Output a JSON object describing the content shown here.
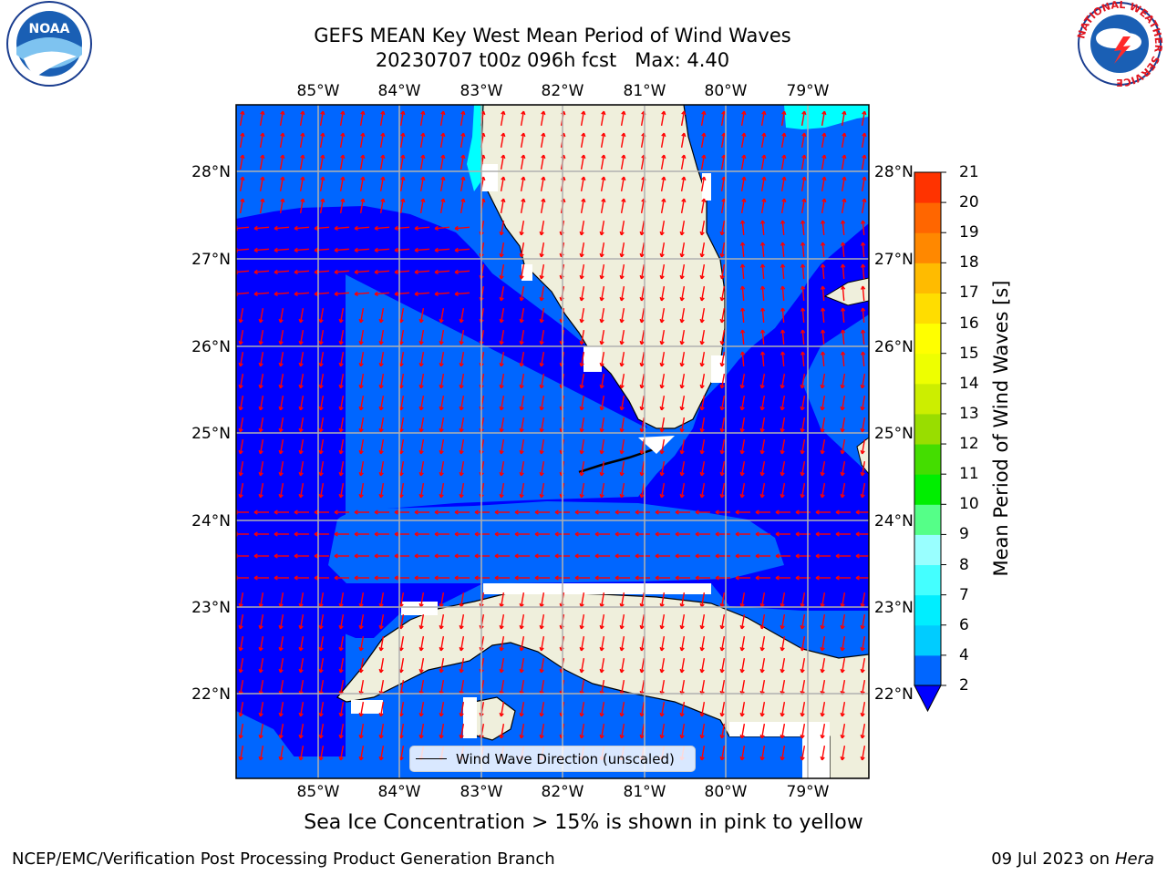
{
  "title": {
    "line1": "GEFS MEAN Key West Mean Period of Wind Waves",
    "line2": "20230707 t00z 096h fcst   Max: 4.40"
  },
  "logos": {
    "noaa_text": "NOAA",
    "nws_ring": "NATIONAL WEATHER SERVICE"
  },
  "map": {
    "longitude_labels": [
      "85°W",
      "84°W",
      "83°W",
      "82°W",
      "81°W",
      "80°W",
      "79°W"
    ],
    "latitude_labels": [
      "28°N",
      "27°N",
      "26°N",
      "25°N",
      "24°N",
      "23°N",
      "22°N"
    ],
    "legend": "Wind Wave Direction (unscaled)",
    "colors": {
      "ocean_low": "#0000ff",
      "ocean_mid": "#0066ff",
      "ocean_light": "#00aaff",
      "ocean_cyan": "#00ffff",
      "land": "#efefdc",
      "arrow": "#ff0000",
      "grid": "#b0b0b0"
    }
  },
  "colorbar": {
    "label": "Mean Period of Wind Waves [s]",
    "ticks": [
      "2",
      "4",
      "6",
      "7",
      "8",
      "9",
      "10",
      "11",
      "12",
      "13",
      "14",
      "15",
      "16",
      "17",
      "18",
      "19",
      "20",
      "21"
    ],
    "colors": [
      "#0066ff",
      "#00ccff",
      "#00eeff",
      "#44ffff",
      "#99ffff",
      "#55ff88",
      "#00ee00",
      "#44dd00",
      "#99dd00",
      "#ccee00",
      "#eeff00",
      "#ffff00",
      "#ffdd00",
      "#ffbb00",
      "#ff8800",
      "#ff6600",
      "#ff3300",
      "#ff0000"
    ],
    "extend_color": "#0000ff"
  },
  "footnote": "Sea Ice Concentration > 15% is shown in pink to yellow",
  "credit": "NCEP/EMC/Verification Post Processing Product Generation Branch",
  "rundate": {
    "date": "09 Jul 2023 on ",
    "host": "Hera"
  }
}
